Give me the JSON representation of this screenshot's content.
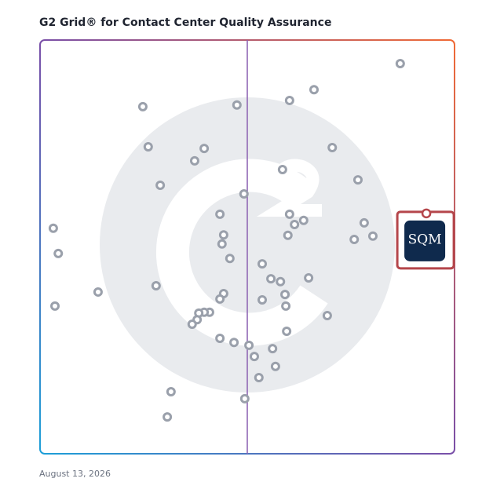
{
  "chart_data": {
    "type": "scatter",
    "title": "G2 Grid® for Contact Center Quality Assurance",
    "date": "August 13, 2026",
    "xlim": [
      0,
      100
    ],
    "ylim": [
      0,
      100
    ],
    "color": "#9aa0ab",
    "x": [
      86.9,
      66.1,
      60.2,
      47.5,
      24.8,
      26.1,
      39.6,
      70.5,
      37.3,
      58.5,
      29.0,
      76.7,
      49.2,
      43.4,
      60.2,
      63.6,
      61.4,
      78.2,
      3.2,
      44.3,
      59.8,
      80.3,
      75.8,
      43.9,
      4.4,
      45.8,
      53.6,
      55.7,
      58.0,
      64.8,
      28.0,
      14.0,
      44.3,
      59.1,
      43.4,
      53.6,
      3.6,
      59.3,
      40.9,
      39.6,
      38.3,
      37.9,
      36.7,
      69.3,
      59.5,
      43.4,
      46.8,
      50.4,
      56.1,
      51.7,
      56.8,
      52.8,
      31.6,
      49.4,
      30.7
    ],
    "values": [
      94.3,
      88.0,
      85.4,
      84.3,
      83.9,
      74.2,
      73.8,
      74.0,
      70.8,
      68.7,
      64.9,
      66.2,
      62.8,
      57.9,
      57.9,
      56.4,
      55.4,
      55.8,
      54.5,
      52.9,
      52.8,
      52.6,
      51.8,
      50.7,
      48.4,
      47.2,
      45.9,
      42.3,
      41.6,
      42.5,
      40.6,
      39.1,
      38.7,
      38.5,
      37.4,
      37.2,
      35.7,
      35.7,
      34.2,
      34.2,
      34.0,
      32.4,
      31.3,
      33.4,
      29.6,
      27.9,
      26.9,
      26.2,
      25.4,
      23.5,
      21.1,
      18.4,
      15.0,
      13.3,
      8.9
    ],
    "highlight": {
      "x": 93.2,
      "y": 58.1,
      "label": "SQM",
      "color": "#b5464b"
    }
  }
}
